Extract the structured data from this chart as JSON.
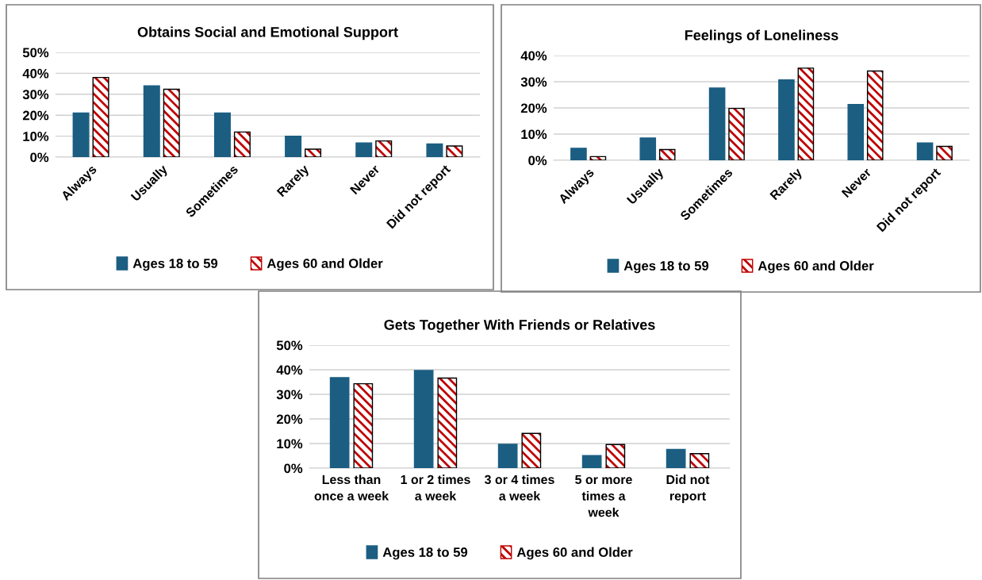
{
  "chart_data": [
    {
      "type": "bar",
      "title": "Obtains Social and Emotional Support",
      "categories": [
        "Always",
        "Usually",
        "Sometimes",
        "Rarely",
        "Never",
        "Did not report"
      ],
      "series": [
        {
          "name": "Ages 18 to 59",
          "color": "#1b5e82",
          "values": [
            21,
            34,
            21,
            10,
            6.7,
            6.3
          ]
        },
        {
          "name": "Ages 60 and Older",
          "color": "#c00000",
          "values": [
            38,
            32.4,
            12,
            3.8,
            7.7,
            5.3
          ]
        }
      ],
      "ylim": [
        0,
        50
      ],
      "yticks": [
        {
          "value": 0,
          "label": "0%"
        },
        {
          "value": 10,
          "label": "10%"
        },
        {
          "value": 20,
          "label": "20%"
        },
        {
          "value": 30,
          "label": "30%"
        },
        {
          "value": 40,
          "label": "40%"
        },
        {
          "value": 50,
          "label": "50%"
        }
      ],
      "grid": "y",
      "legend": "bottom"
    },
    {
      "type": "bar",
      "title": "Feelings of Loneliness",
      "categories": [
        "Always",
        "Usually",
        "Sometimes",
        "Rarely",
        "Never",
        "Did not report"
      ],
      "series": [
        {
          "name": "Ages 18 to 59",
          "color": "#1b5e82",
          "values": [
            4.6,
            8.5,
            27.6,
            30.7,
            21.3,
            6.6
          ]
        },
        {
          "name": "Ages 60 and Older",
          "color": "#c00000",
          "values": [
            1.4,
            4.1,
            19.8,
            35.2,
            34.1,
            5.3
          ]
        }
      ],
      "ylim": [
        0,
        40
      ],
      "yticks": [
        {
          "value": 0,
          "label": "0%"
        },
        {
          "value": 10,
          "label": "10%"
        },
        {
          "value": 20,
          "label": "20%"
        },
        {
          "value": 30,
          "label": "30%"
        },
        {
          "value": 40,
          "label": "40%"
        }
      ],
      "grid": "y",
      "legend": "bottom"
    },
    {
      "type": "bar",
      "title": "Gets Together With Friends or Relatives",
      "categories": [
        "Less than\nonce a week",
        "1 or 2 times\na week",
        "3 or 4 times\na week",
        "5 or more\ntimes a\nweek",
        "Did not\nreport"
      ],
      "series": [
        {
          "name": "Ages 18 to 59",
          "color": "#1b5e82",
          "values": [
            36.8,
            39.7,
            9.7,
            5.1,
            7.6
          ]
        },
        {
          "name": "Ages 60 and Older",
          "color": "#c00000",
          "values": [
            34.3,
            36.6,
            14.1,
            9.6,
            5.9
          ]
        }
      ],
      "ylim": [
        0,
        50
      ],
      "yticks": [
        {
          "value": 0,
          "label": "0%"
        },
        {
          "value": 10,
          "label": "10%"
        },
        {
          "value": 20,
          "label": "20%"
        },
        {
          "value": 30,
          "label": "30%"
        },
        {
          "value": 40,
          "label": "40%"
        },
        {
          "value": 50,
          "label": "50%"
        }
      ],
      "grid": "y",
      "legend": "bottom"
    }
  ]
}
